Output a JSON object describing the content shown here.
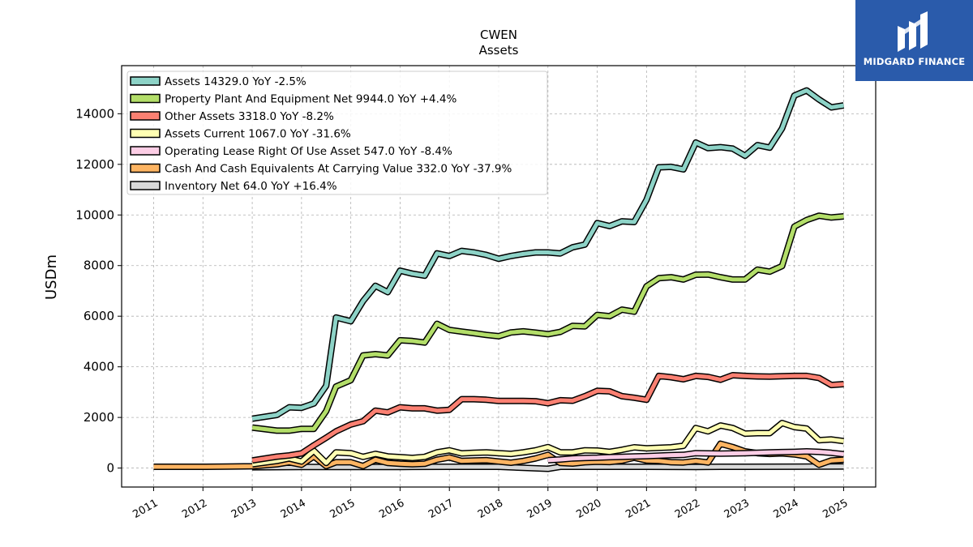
{
  "chart_data": {
    "type": "line",
    "title": "CWEN",
    "subtitle": "Assets",
    "ylabel": "USDm",
    "xlabel": "",
    "ylim": [
      -750,
      15900
    ],
    "xlim": [
      2010.35,
      2025.65
    ],
    "yticks": [
      0,
      2000,
      4000,
      6000,
      8000,
      10000,
      12000,
      14000
    ],
    "xticks": [
      "2011",
      "2012",
      "2013",
      "2014",
      "2015",
      "2016",
      "2017",
      "2018",
      "2019",
      "2020",
      "2021",
      "2022",
      "2023",
      "2024",
      "2025"
    ],
    "grid": true,
    "legend_position": "top-left",
    "series": [
      {
        "name": "Assets",
        "legend": "Assets  14329.0 YoY -2.5%",
        "color": "#8dd3c7",
        "points": [
          [
            2013.0,
            1950
          ],
          [
            2013.5,
            2100
          ],
          [
            2013.75,
            2400
          ],
          [
            2014.0,
            2380
          ],
          [
            2014.25,
            2550
          ],
          [
            2014.5,
            3250
          ],
          [
            2014.7,
            5950
          ],
          [
            2015.0,
            5800
          ],
          [
            2015.25,
            6600
          ],
          [
            2015.5,
            7200
          ],
          [
            2015.75,
            6950
          ],
          [
            2016.0,
            7800
          ],
          [
            2016.25,
            7680
          ],
          [
            2016.5,
            7600
          ],
          [
            2016.75,
            8480
          ],
          [
            2017.0,
            8380
          ],
          [
            2017.25,
            8580
          ],
          [
            2017.5,
            8520
          ],
          [
            2017.75,
            8420
          ],
          [
            2018.0,
            8270
          ],
          [
            2018.25,
            8380
          ],
          [
            2018.5,
            8460
          ],
          [
            2018.75,
            8520
          ],
          [
            2019.0,
            8520
          ],
          [
            2019.25,
            8480
          ],
          [
            2019.5,
            8720
          ],
          [
            2019.75,
            8830
          ],
          [
            2020.0,
            9680
          ],
          [
            2020.25,
            9560
          ],
          [
            2020.5,
            9750
          ],
          [
            2020.75,
            9720
          ],
          [
            2021.0,
            10600
          ],
          [
            2021.25,
            11880
          ],
          [
            2021.5,
            11900
          ],
          [
            2021.75,
            11800
          ],
          [
            2022.0,
            12860
          ],
          [
            2022.25,
            12640
          ],
          [
            2022.5,
            12680
          ],
          [
            2022.75,
            12620
          ],
          [
            2023.0,
            12340
          ],
          [
            2023.25,
            12760
          ],
          [
            2023.5,
            12660
          ],
          [
            2023.75,
            13420
          ],
          [
            2024.0,
            14720
          ],
          [
            2024.25,
            14920
          ],
          [
            2024.5,
            14560
          ],
          [
            2024.75,
            14250
          ],
          [
            2025.0,
            14329
          ]
        ]
      },
      {
        "name": "Property Plant And Equipment Net",
        "legend": "Property Plant And Equipment Net  9944.0 YoY +4.4%",
        "color": "#b3de69",
        "points": [
          [
            2013.0,
            1600
          ],
          [
            2013.5,
            1480
          ],
          [
            2013.75,
            1480
          ],
          [
            2014.0,
            1550
          ],
          [
            2014.25,
            1550
          ],
          [
            2014.5,
            2250
          ],
          [
            2014.7,
            3220
          ],
          [
            2015.0,
            3470
          ],
          [
            2015.25,
            4450
          ],
          [
            2015.5,
            4500
          ],
          [
            2015.75,
            4450
          ],
          [
            2016.0,
            5050
          ],
          [
            2016.25,
            5020
          ],
          [
            2016.5,
            4960
          ],
          [
            2016.75,
            5700
          ],
          [
            2017.0,
            5460
          ],
          [
            2017.25,
            5390
          ],
          [
            2017.5,
            5330
          ],
          [
            2017.75,
            5260
          ],
          [
            2018.0,
            5210
          ],
          [
            2018.25,
            5360
          ],
          [
            2018.5,
            5400
          ],
          [
            2018.75,
            5350
          ],
          [
            2019.0,
            5290
          ],
          [
            2019.25,
            5380
          ],
          [
            2019.5,
            5620
          ],
          [
            2019.75,
            5600
          ],
          [
            2020.0,
            6050
          ],
          [
            2020.25,
            6000
          ],
          [
            2020.5,
            6260
          ],
          [
            2020.75,
            6180
          ],
          [
            2021.0,
            7180
          ],
          [
            2021.25,
            7500
          ],
          [
            2021.5,
            7540
          ],
          [
            2021.75,
            7450
          ],
          [
            2022.0,
            7640
          ],
          [
            2022.25,
            7650
          ],
          [
            2022.5,
            7540
          ],
          [
            2022.75,
            7450
          ],
          [
            2023.0,
            7450
          ],
          [
            2023.25,
            7840
          ],
          [
            2023.5,
            7760
          ],
          [
            2023.75,
            7980
          ],
          [
            2024.0,
            9540
          ],
          [
            2024.25,
            9800
          ],
          [
            2024.5,
            9970
          ],
          [
            2024.75,
            9900
          ],
          [
            2025.0,
            9944
          ]
        ]
      },
      {
        "name": "Other Assets",
        "legend": "Other Assets  3318.0 YoY -8.2%",
        "color": "#fb8072",
        "points": [
          [
            2013.0,
            300
          ],
          [
            2013.5,
            450
          ],
          [
            2013.75,
            500
          ],
          [
            2014.0,
            580
          ],
          [
            2014.25,
            900
          ],
          [
            2014.5,
            1200
          ],
          [
            2014.7,
            1450
          ],
          [
            2015.0,
            1720
          ],
          [
            2015.25,
            1850
          ],
          [
            2015.5,
            2270
          ],
          [
            2015.75,
            2200
          ],
          [
            2016.0,
            2400
          ],
          [
            2016.25,
            2360
          ],
          [
            2016.5,
            2360
          ],
          [
            2016.75,
            2270
          ],
          [
            2017.0,
            2300
          ],
          [
            2017.25,
            2720
          ],
          [
            2017.5,
            2720
          ],
          [
            2017.75,
            2700
          ],
          [
            2018.0,
            2650
          ],
          [
            2018.25,
            2650
          ],
          [
            2018.5,
            2650
          ],
          [
            2018.75,
            2640
          ],
          [
            2019.0,
            2560
          ],
          [
            2019.25,
            2680
          ],
          [
            2019.5,
            2660
          ],
          [
            2019.75,
            2840
          ],
          [
            2020.0,
            3050
          ],
          [
            2020.25,
            3030
          ],
          [
            2020.5,
            2840
          ],
          [
            2020.75,
            2780
          ],
          [
            2021.0,
            2700
          ],
          [
            2021.25,
            3640
          ],
          [
            2021.5,
            3590
          ],
          [
            2021.75,
            3510
          ],
          [
            2022.0,
            3640
          ],
          [
            2022.25,
            3600
          ],
          [
            2022.5,
            3490
          ],
          [
            2022.75,
            3670
          ],
          [
            2023.0,
            3640
          ],
          [
            2023.25,
            3620
          ],
          [
            2023.5,
            3610
          ],
          [
            2023.75,
            3630
          ],
          [
            2024.0,
            3640
          ],
          [
            2024.25,
            3640
          ],
          [
            2024.5,
            3560
          ],
          [
            2024.75,
            3280
          ],
          [
            2025.0,
            3318
          ]
        ]
      },
      {
        "name": "Assets Current",
        "legend": "Assets Current  1067.0 YoY -31.6%",
        "color": "#ffffb3",
        "points": [
          [
            2013.0,
            150
          ],
          [
            2013.5,
            280
          ],
          [
            2013.75,
            380
          ],
          [
            2014.0,
            260
          ],
          [
            2014.25,
            680
          ],
          [
            2014.5,
            200
          ],
          [
            2014.7,
            620
          ],
          [
            2015.0,
            590
          ],
          [
            2015.25,
            440
          ],
          [
            2015.5,
            560
          ],
          [
            2015.75,
            460
          ],
          [
            2016.0,
            430
          ],
          [
            2016.25,
            400
          ],
          [
            2016.5,
            440
          ],
          [
            2016.75,
            620
          ],
          [
            2017.0,
            700
          ],
          [
            2017.25,
            580
          ],
          [
            2017.5,
            600
          ],
          [
            2017.75,
            620
          ],
          [
            2018.0,
            590
          ],
          [
            2018.25,
            560
          ],
          [
            2018.5,
            620
          ],
          [
            2018.75,
            700
          ],
          [
            2019.0,
            830
          ],
          [
            2019.25,
            620
          ],
          [
            2019.5,
            620
          ],
          [
            2019.75,
            700
          ],
          [
            2020.0,
            690
          ],
          [
            2020.25,
            640
          ],
          [
            2020.5,
            720
          ],
          [
            2020.75,
            820
          ],
          [
            2021.0,
            780
          ],
          [
            2021.25,
            800
          ],
          [
            2021.5,
            820
          ],
          [
            2021.75,
            880
          ],
          [
            2022.0,
            1580
          ],
          [
            2022.25,
            1450
          ],
          [
            2022.5,
            1680
          ],
          [
            2022.75,
            1580
          ],
          [
            2023.0,
            1360
          ],
          [
            2023.25,
            1380
          ],
          [
            2023.5,
            1380
          ],
          [
            2023.75,
            1780
          ],
          [
            2024.0,
            1620
          ],
          [
            2024.25,
            1560
          ],
          [
            2024.5,
            1100
          ],
          [
            2024.75,
            1130
          ],
          [
            2025.0,
            1067
          ]
        ]
      },
      {
        "name": "Operating Lease Right Of Use Asset",
        "legend": "Operating Lease Right Of Use Asset  547.0 YoY -8.4%",
        "color": "#fccde5",
        "points": [
          [
            2019.0,
            310
          ],
          [
            2019.25,
            340
          ],
          [
            2019.5,
            380
          ],
          [
            2019.75,
            400
          ],
          [
            2020.0,
            410
          ],
          [
            2020.25,
            430
          ],
          [
            2020.5,
            440
          ],
          [
            2020.75,
            460
          ],
          [
            2021.0,
            470
          ],
          [
            2021.25,
            490
          ],
          [
            2021.5,
            510
          ],
          [
            2021.75,
            520
          ],
          [
            2022.0,
            590
          ],
          [
            2022.25,
            580
          ],
          [
            2022.5,
            570
          ],
          [
            2022.75,
            580
          ],
          [
            2023.0,
            590
          ],
          [
            2023.25,
            600
          ],
          [
            2023.5,
            620
          ],
          [
            2023.75,
            630
          ],
          [
            2024.0,
            640
          ],
          [
            2024.25,
            660
          ],
          [
            2024.5,
            640
          ],
          [
            2024.75,
            600
          ],
          [
            2025.0,
            547
          ]
        ]
      },
      {
        "name": "Cash And Cash Equivalents At Carrying Value",
        "legend": "Cash And Cash Equivalents At Carrying Value  332.0 YoY -37.9%",
        "color": "#fdb462",
        "points": [
          [
            2011.0,
            50
          ],
          [
            2011.5,
            50
          ],
          [
            2012.0,
            50
          ],
          [
            2012.5,
            60
          ],
          [
            2013.0,
            70
          ],
          [
            2013.5,
            150
          ],
          [
            2013.75,
            230
          ],
          [
            2014.0,
            130
          ],
          [
            2014.25,
            460
          ],
          [
            2014.5,
            80
          ],
          [
            2014.7,
            230
          ],
          [
            2015.0,
            230
          ],
          [
            2015.25,
            80
          ],
          [
            2015.5,
            330
          ],
          [
            2015.75,
            200
          ],
          [
            2016.0,
            170
          ],
          [
            2016.25,
            150
          ],
          [
            2016.5,
            170
          ],
          [
            2016.75,
            330
          ],
          [
            2017.0,
            420
          ],
          [
            2017.25,
            280
          ],
          [
            2017.5,
            300
          ],
          [
            2017.75,
            310
          ],
          [
            2018.0,
            260
          ],
          [
            2018.25,
            210
          ],
          [
            2018.5,
            280
          ],
          [
            2018.75,
            380
          ],
          [
            2019.0,
            520
          ],
          [
            2019.25,
            200
          ],
          [
            2019.5,
            180
          ],
          [
            2019.75,
            230
          ],
          [
            2020.0,
            250
          ],
          [
            2020.25,
            240
          ],
          [
            2020.5,
            290
          ],
          [
            2020.75,
            410
          ],
          [
            2021.0,
            300
          ],
          [
            2021.25,
            280
          ],
          [
            2021.5,
            230
          ],
          [
            2021.75,
            220
          ],
          [
            2022.0,
            280
          ],
          [
            2022.25,
            220
          ],
          [
            2022.5,
            960
          ],
          [
            2022.75,
            830
          ],
          [
            2023.0,
            660
          ],
          [
            2023.25,
            590
          ],
          [
            2023.5,
            560
          ],
          [
            2023.75,
            580
          ],
          [
            2024.0,
            540
          ],
          [
            2024.25,
            460
          ],
          [
            2024.5,
            130
          ],
          [
            2024.75,
            300
          ],
          [
            2025.0,
            332
          ]
        ]
      },
      {
        "name": "Inventory Net",
        "legend": "Inventory Net  64.0 YoY +16.4%",
        "color": "#d9d9d9",
        "points": [
          [
            2013.0,
            30
          ],
          [
            2014.0,
            40
          ],
          [
            2015.0,
            45
          ],
          [
            2016.0,
            45
          ],
          [
            2017.0,
            50
          ],
          [
            2018.0,
            50
          ],
          [
            2019.0,
            -30
          ],
          [
            2019.25,
            50
          ],
          [
            2020.0,
            50
          ],
          [
            2021.0,
            50
          ],
          [
            2022.0,
            45
          ],
          [
            2022.5,
            50
          ],
          [
            2023.0,
            50
          ],
          [
            2024.0,
            55
          ],
          [
            2024.5,
            58
          ],
          [
            2025.0,
            64
          ]
        ]
      }
    ]
  },
  "watermark": {
    "text": "MIDGARD FINANCE",
    "background": "#2a5bab",
    "icon": "midgard-logo-icon"
  }
}
